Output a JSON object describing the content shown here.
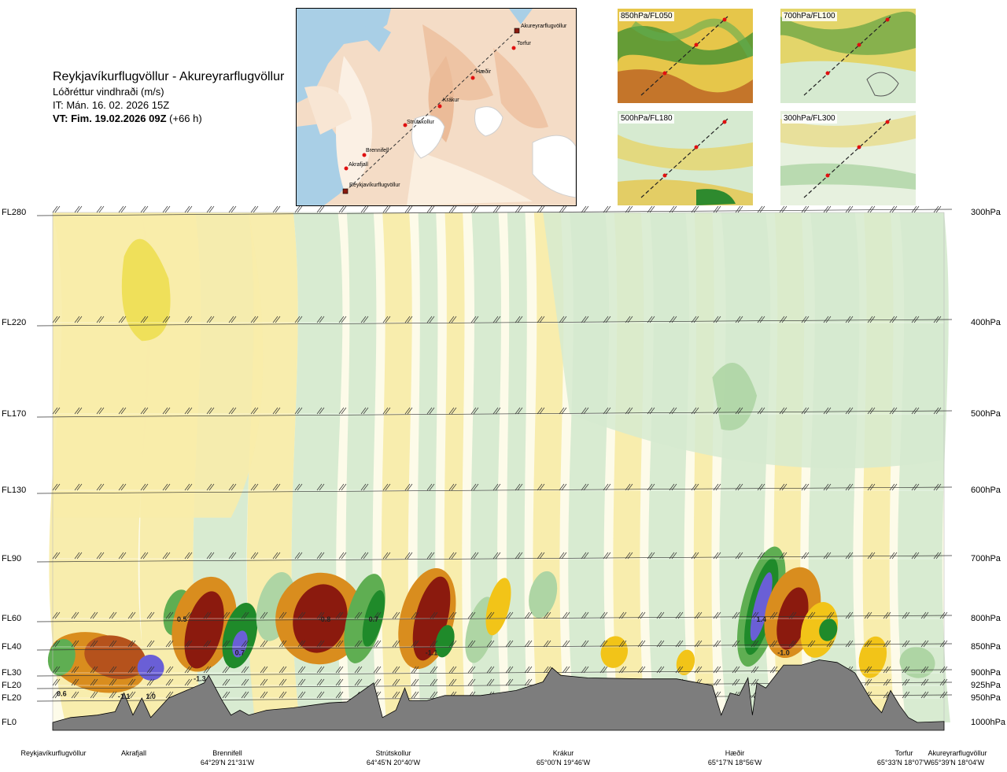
{
  "header": {
    "title": "Reykjavíkurflugvöllur - Akureyrarflugvöllur",
    "subtitle": "Lóðréttur vindhraði (m/s)",
    "issue_time": "IT: Mán. 16. 02. 2026 15Z",
    "valid_label": "VT: Fim. 19.02.2026 09Z",
    "valid_offset": "(+66 h)"
  },
  "map": {
    "waypoints": [
      "Akureyrarflugvöllur",
      "Torfur",
      "Hæðir",
      "Krákur",
      "Strútskollur",
      "Brennifell",
      "Akrafjall",
      "Reykjavíkurflugvöllur"
    ]
  },
  "level_maps": [
    {
      "label": "850hPa/FL050"
    },
    {
      "label": "700hPa/FL100"
    },
    {
      "label": "500hPa/FL180"
    },
    {
      "label": "300hPa/FL300"
    }
  ],
  "chart_data": {
    "type": "heatmap",
    "title": "Reykjavíkurflugvöllur - Akureyrarflugvöllur",
    "variable": "Lóðréttur vindhraði (m/s)",
    "x_axis": "distance along route (fraction of route, 0 = Reykjavík, 1 = Akureyri)",
    "flight_levels": [
      "FL280",
      "FL220",
      "FL170",
      "FL130",
      "FL90",
      "FL60",
      "FL40",
      "FL30",
      "FL20",
      "FL20",
      "FL0"
    ],
    "pressure_levels": [
      "300hPa",
      "400hPa",
      "500hPa",
      "600hPa",
      "700hPa",
      "800hPa",
      "850hPa",
      "900hPa",
      "925hPa",
      "950hPa",
      "1000hPa"
    ],
    "pressure_values_hpa": [
      300,
      400,
      500,
      600,
      700,
      800,
      850,
      900,
      925,
      950,
      1000
    ],
    "stations": [
      {
        "name": "Reykjavíkurflugvöllur",
        "coord": "",
        "x": 0.0
      },
      {
        "name": "Akrafjall",
        "coord": "",
        "x": 0.09
      },
      {
        "name": "Brennifell",
        "coord": "64°29'N 21°31'W",
        "x": 0.19
      },
      {
        "name": "Strútskollur",
        "coord": "64°45'N 20°40'W",
        "x": 0.38
      },
      {
        "name": "Krákur",
        "coord": "65°00'N 19°46'W",
        "x": 0.57
      },
      {
        "name": "Hæðir",
        "coord": "65°17'N 18°56'W",
        "x": 0.77
      },
      {
        "name": "Torfur",
        "coord": "65°33'N 18°07'W",
        "x": 0.95
      },
      {
        "name": "Akureyrarflugvöllur",
        "coord": "65°39'N 18°04'W",
        "x": 1.0
      }
    ],
    "extrema": [
      {
        "value": "0.6",
        "x": 0.01,
        "p": 940
      },
      {
        "value": "-1.1",
        "x": 0.08,
        "p": 945
      },
      {
        "value": "1.0",
        "x": 0.11,
        "p": 945
      },
      {
        "value": "0.5",
        "x": 0.145,
        "p": 800
      },
      {
        "value": "-1.3",
        "x": 0.165,
        "p": 910
      },
      {
        "value": "0.7",
        "x": 0.21,
        "p": 860
      },
      {
        "value": "-0.8",
        "x": 0.305,
        "p": 800
      },
      {
        "value": "0.7",
        "x": 0.36,
        "p": 800
      },
      {
        "value": "-1.1",
        "x": 0.425,
        "p": 860
      },
      {
        "value": "1.4",
        "x": 0.795,
        "p": 800
      },
      {
        "value": "-1.0",
        "x": 0.82,
        "p": 860
      }
    ],
    "color_scale_ms": [
      -1.5,
      -1.0,
      -0.6,
      -0.3,
      -0.1,
      0.1,
      0.3,
      0.6,
      1.0,
      1.5
    ],
    "colors": {
      "strong_down": "#8b1a0e",
      "mod_down": "#b5521c",
      "down": "#d98d1e",
      "weak_down": "#f2c418",
      "slight_down": "#f8ecaa",
      "neutral": "#fdfbe9",
      "slight_up": "#d6ead0",
      "weak_up": "#aed5a4",
      "up": "#5fae52",
      "mod_up": "#1f8a2a",
      "strong_up": "#6a5fd6",
      "terrain": "#7d7d7d"
    }
  }
}
